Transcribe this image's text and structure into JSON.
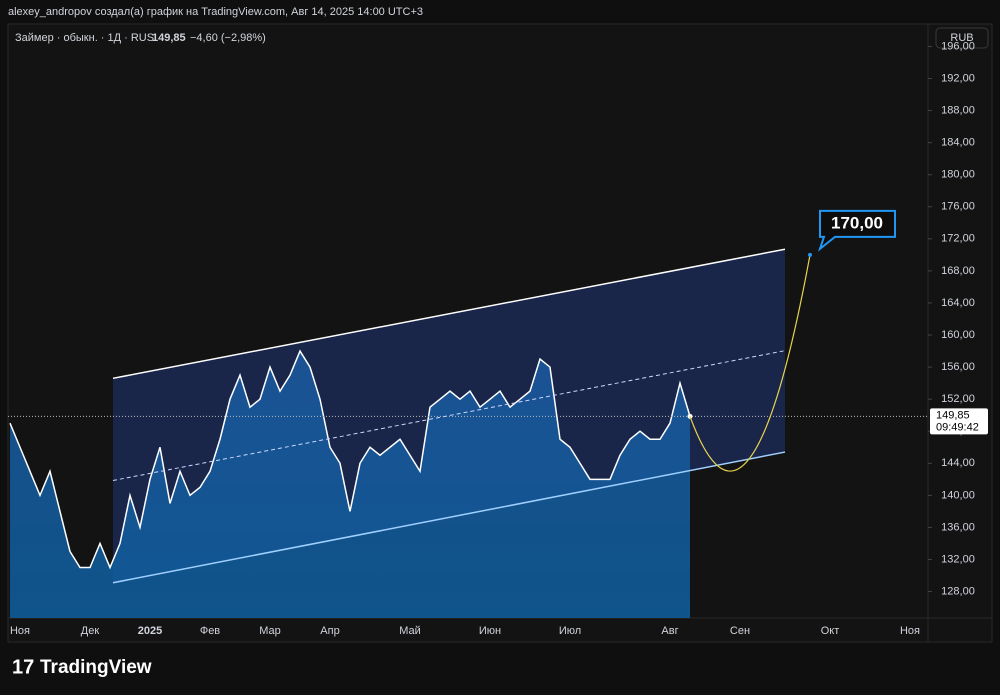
{
  "header": "alexey_andropov создал(а) график на TradingView.com, Авг 14, 2025 14:00 UTC+3",
  "legend": {
    "symbol": "Займер · обыкн. · 1Д · RUS",
    "price": "149,85",
    "change": "−4,60 (−2,98%)"
  },
  "currency": "RUB",
  "price_tag": {
    "price": "149,85",
    "timer": "09:49:42"
  },
  "footer": "TradingView",
  "chart_data": {
    "type": "area",
    "categories": [
      null,
      "Ноя",
      null,
      null,
      null,
      null,
      null,
      null,
      "Дек",
      null,
      null,
      null,
      null,
      null,
      "2025",
      null,
      null,
      null,
      null,
      null,
      "Фев",
      null,
      null,
      null,
      null,
      null,
      "Мар",
      null,
      null,
      null,
      null,
      null,
      "Апр",
      null,
      null,
      null,
      null,
      null,
      null,
      null,
      "Май",
      null,
      null,
      null,
      null,
      null,
      null,
      null,
      "Июн",
      null,
      null,
      null,
      null,
      null,
      null,
      null,
      "Июл",
      null,
      null,
      null,
      null,
      null,
      null,
      null,
      null,
      null,
      "Авг",
      null,
      null,
      null,
      null,
      null,
      null,
      "Сен",
      null,
      null,
      null,
      null,
      null,
      null,
      null,
      null,
      "Окт",
      null,
      null,
      null,
      null,
      null,
      null,
      null,
      "Ноя",
      null
    ],
    "series": [
      {
        "name": "Займер",
        "color": "#ffffff",
        "values": [
          149,
          146,
          143,
          140,
          143,
          138,
          133,
          131,
          131,
          134,
          131,
          134,
          140,
          136,
          142,
          146,
          139,
          143,
          140,
          141,
          143,
          147,
          152,
          155,
          151,
          152,
          156,
          153,
          155,
          158,
          156,
          152,
          146,
          144,
          138,
          144,
          146,
          145,
          146,
          147,
          145,
          143,
          151,
          152,
          153,
          152,
          153,
          151,
          152,
          153,
          151,
          152,
          153,
          157,
          156,
          147,
          146,
          144,
          142,
          142,
          142,
          145,
          147,
          148,
          147,
          147,
          149,
          154,
          149.85,
          null,
          null,
          null,
          null,
          null,
          null,
          null,
          null,
          null,
          null,
          null,
          null,
          null,
          null,
          null,
          null,
          null,
          null,
          null,
          null,
          null,
          null,
          null
        ]
      }
    ],
    "channel": {
      "x": [
        10.3,
        77.5
      ],
      "upper": [
        154.6,
        170.7
      ],
      "lower": [
        129.1,
        145.4
      ]
    },
    "forecast": {
      "x": [
        68,
        70.5,
        80
      ],
      "values": [
        149.85,
        144,
        170
      ],
      "color": "#e8d44d"
    },
    "target": {
      "value": 170,
      "label": "170,00"
    },
    "ylim": [
      124.7,
      198.8
    ],
    "yticks": [
      {
        "value": 128,
        "label": "128,00"
      },
      {
        "value": 132,
        "label": "132,00"
      },
      {
        "value": 136,
        "label": "136,00"
      },
      {
        "value": 140,
        "label": "140,00"
      },
      {
        "value": 144,
        "label": "144,00"
      },
      {
        "value": 148,
        "label": "148,00"
      },
      {
        "value": 152,
        "label": "152,00"
      },
      {
        "value": 156,
        "label": "156,00"
      },
      {
        "value": 160,
        "label": "160,00"
      },
      {
        "value": 164,
        "label": "164,00"
      },
      {
        "value": 168,
        "label": "168,00"
      },
      {
        "value": 172,
        "label": "172,00"
      },
      {
        "value": 176,
        "label": "176,00"
      },
      {
        "value": 180,
        "label": "180,00"
      },
      {
        "value": 184,
        "label": "184,00"
      },
      {
        "value": 188,
        "label": "188,00"
      },
      {
        "value": 192,
        "label": "192,00"
      },
      {
        "value": 196,
        "label": "196,00"
      }
    ],
    "grid": false
  }
}
